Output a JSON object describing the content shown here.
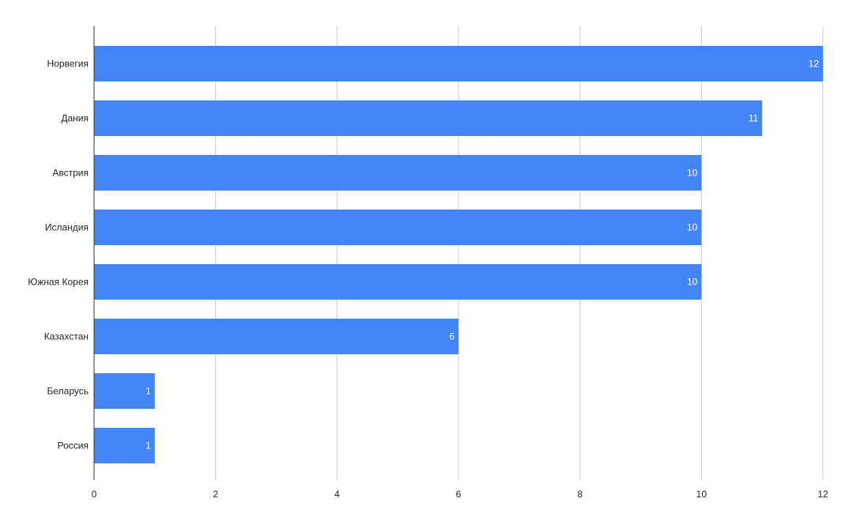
{
  "chart_data": {
    "type": "bar",
    "orientation": "horizontal",
    "title": "",
    "xlabel": "",
    "ylabel": "",
    "categories": [
      "Норвегия",
      "Дания",
      "Австрия",
      "Исландия",
      "Южная Корея",
      "Казахстан",
      "Беларусь",
      "Россия"
    ],
    "values": [
      12,
      11,
      10,
      10,
      10,
      6,
      1,
      1
    ],
    "xlim": [
      0,
      12
    ],
    "xticks": [
      0,
      2,
      4,
      6,
      8,
      10,
      12
    ],
    "grid": true,
    "data_labels": true,
    "legend": "none",
    "colors": {
      "bar": "#4285f4",
      "grid": "#cccccc",
      "axis": "#333333",
      "label_text": "#222222",
      "data_label_text": "#ffffff"
    }
  }
}
